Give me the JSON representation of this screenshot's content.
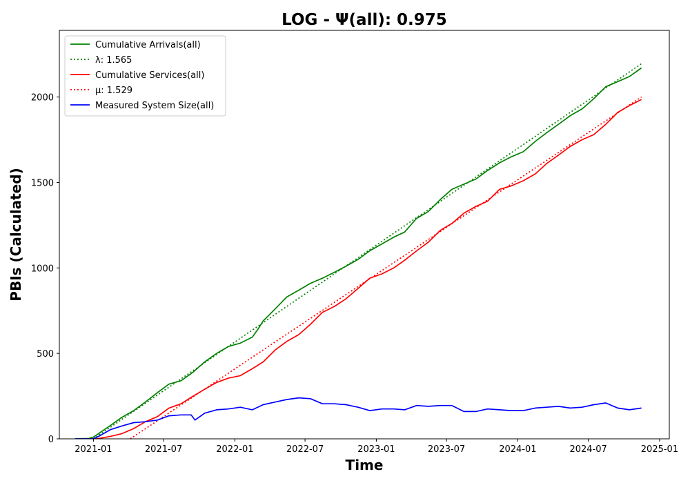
{
  "chart_data": {
    "type": "line",
    "title": "LOG -  Ψ(all): 0.975",
    "xlabel": "Time",
    "ylabel": "PBIs (Calculated)",
    "x_ticks": [
      "2021-01",
      "2021-07",
      "2022-01",
      "2022-07",
      "2023-01",
      "2023-07",
      "2024-01",
      "2024-07",
      "2025-01"
    ],
    "y_ticks": [
      0,
      500,
      1000,
      1500,
      2000
    ],
    "xlim": [
      "2020-10-05",
      "2025-01-26"
    ],
    "ylim": [
      0,
      2390
    ],
    "grid": false,
    "legend_position": "top-left",
    "series": [
      {
        "name": "Cumulative Arrivals(all)",
        "color": "#008000",
        "style": "solid",
        "points": [
          [
            "2020-11-15",
            0
          ],
          [
            "2020-12-20",
            2
          ],
          [
            "2021-01-01",
            10
          ],
          [
            "2021-02-15",
            80
          ],
          [
            "2021-03-15",
            125
          ],
          [
            "2021-04-15",
            165
          ],
          [
            "2021-05-15",
            215
          ],
          [
            "2021-06-15",
            270
          ],
          [
            "2021-07-15",
            320
          ],
          [
            "2021-08-15",
            340
          ],
          [
            "2021-09-15",
            390
          ],
          [
            "2021-10-15",
            450
          ],
          [
            "2021-11-15",
            500
          ],
          [
            "2021-12-15",
            540
          ],
          [
            "2022-01-15",
            560
          ],
          [
            "2022-02-15",
            595
          ],
          [
            "2022-03-01",
            640
          ],
          [
            "2022-03-15",
            690
          ],
          [
            "2022-04-15",
            760
          ],
          [
            "2022-05-15",
            830
          ],
          [
            "2022-06-15",
            870
          ],
          [
            "2022-07-15",
            910
          ],
          [
            "2022-08-15",
            940
          ],
          [
            "2022-09-15",
            975
          ],
          [
            "2022-10-15",
            1010
          ],
          [
            "2022-11-15",
            1050
          ],
          [
            "2022-12-15",
            1100
          ],
          [
            "2023-01-15",
            1140
          ],
          [
            "2023-02-15",
            1180
          ],
          [
            "2023-03-15",
            1210
          ],
          [
            "2023-04-15",
            1290
          ],
          [
            "2023-05-15",
            1330
          ],
          [
            "2023-06-15",
            1400
          ],
          [
            "2023-07-15",
            1460
          ],
          [
            "2023-08-15",
            1490
          ],
          [
            "2023-09-15",
            1520
          ],
          [
            "2023-10-15",
            1570
          ],
          [
            "2023-11-15",
            1615
          ],
          [
            "2023-12-15",
            1650
          ],
          [
            "2024-01-15",
            1680
          ],
          [
            "2024-02-15",
            1740
          ],
          [
            "2024-03-15",
            1790
          ],
          [
            "2024-04-15",
            1840
          ],
          [
            "2024-05-15",
            1890
          ],
          [
            "2024-06-15",
            1930
          ],
          [
            "2024-07-15",
            1990
          ],
          [
            "2024-08-15",
            2060
          ],
          [
            "2024-09-15",
            2090
          ],
          [
            "2024-10-15",
            2120
          ],
          [
            "2024-11-15",
            2170
          ]
        ]
      },
      {
        "name": "λ: 1.565",
        "color": "#008000",
        "style": "dotted",
        "points": [
          [
            "2021-01-01",
            0
          ],
          [
            "2024-11-15",
            2195
          ]
        ]
      },
      {
        "name": "Cumulative Services(all)",
        "color": "#ff0000",
        "style": "solid",
        "points": [
          [
            "2020-12-25",
            0
          ],
          [
            "2021-01-15",
            2
          ],
          [
            "2021-02-15",
            15
          ],
          [
            "2021-03-15",
            30
          ],
          [
            "2021-04-15",
            60
          ],
          [
            "2021-05-15",
            100
          ],
          [
            "2021-06-15",
            130
          ],
          [
            "2021-07-15",
            180
          ],
          [
            "2021-08-15",
            205
          ],
          [
            "2021-09-15",
            250
          ],
          [
            "2021-10-15",
            290
          ],
          [
            "2021-11-15",
            330
          ],
          [
            "2021-12-15",
            355
          ],
          [
            "2022-01-15",
            370
          ],
          [
            "2022-02-15",
            410
          ],
          [
            "2022-03-15",
            450
          ],
          [
            "2022-04-15",
            520
          ],
          [
            "2022-05-15",
            570
          ],
          [
            "2022-06-15",
            610
          ],
          [
            "2022-07-15",
            670
          ],
          [
            "2022-08-15",
            740
          ],
          [
            "2022-09-15",
            775
          ],
          [
            "2022-10-15",
            820
          ],
          [
            "2022-11-15",
            880
          ],
          [
            "2022-12-15",
            940
          ],
          [
            "2023-01-15",
            965
          ],
          [
            "2023-02-15",
            1000
          ],
          [
            "2023-03-15",
            1045
          ],
          [
            "2023-04-15",
            1100
          ],
          [
            "2023-05-15",
            1150
          ],
          [
            "2023-06-15",
            1220
          ],
          [
            "2023-07-15",
            1260
          ],
          [
            "2023-08-15",
            1320
          ],
          [
            "2023-09-15",
            1360
          ],
          [
            "2023-10-15",
            1390
          ],
          [
            "2023-11-15",
            1460
          ],
          [
            "2023-12-15",
            1480
          ],
          [
            "2024-01-15",
            1510
          ],
          [
            "2024-02-15",
            1550
          ],
          [
            "2024-03-15",
            1610
          ],
          [
            "2024-04-15",
            1660
          ],
          [
            "2024-05-15",
            1710
          ],
          [
            "2024-06-15",
            1750
          ],
          [
            "2024-07-15",
            1780
          ],
          [
            "2024-08-15",
            1840
          ],
          [
            "2024-09-15",
            1910
          ],
          [
            "2024-10-15",
            1950
          ],
          [
            "2024-11-15",
            1985
          ]
        ]
      },
      {
        "name": "μ: 1.529",
        "color": "#ff0000",
        "style": "dotted",
        "points": [
          [
            "2021-04-06",
            0
          ],
          [
            "2024-11-15",
            2000
          ]
        ]
      },
      {
        "name": "Measured System Size(all)",
        "color": "#0000ff",
        "style": "solid",
        "points": [
          [
            "2020-11-15",
            0
          ],
          [
            "2020-12-31",
            0
          ],
          [
            "2021-01-15",
            15
          ],
          [
            "2021-02-15",
            55
          ],
          [
            "2021-03-15",
            75
          ],
          [
            "2021-04-15",
            95
          ],
          [
            "2021-05-15",
            100
          ],
          [
            "2021-06-15",
            110
          ],
          [
            "2021-07-15",
            135
          ],
          [
            "2021-08-15",
            140
          ],
          [
            "2021-09-10",
            140
          ],
          [
            "2021-09-20",
            110
          ],
          [
            "2021-10-15",
            150
          ],
          [
            "2021-11-15",
            170
          ],
          [
            "2021-12-15",
            175
          ],
          [
            "2022-01-15",
            185
          ],
          [
            "2022-02-15",
            170
          ],
          [
            "2022-03-15",
            200
          ],
          [
            "2022-04-15",
            215
          ],
          [
            "2022-05-15",
            230
          ],
          [
            "2022-06-15",
            240
          ],
          [
            "2022-07-15",
            235
          ],
          [
            "2022-08-15",
            205
          ],
          [
            "2022-09-15",
            205
          ],
          [
            "2022-10-15",
            200
          ],
          [
            "2022-11-15",
            185
          ],
          [
            "2022-12-15",
            165
          ],
          [
            "2023-01-15",
            175
          ],
          [
            "2023-02-15",
            175
          ],
          [
            "2023-03-15",
            170
          ],
          [
            "2023-04-15",
            195
          ],
          [
            "2023-05-15",
            190
          ],
          [
            "2023-06-15",
            195
          ],
          [
            "2023-07-15",
            195
          ],
          [
            "2023-08-15",
            160
          ],
          [
            "2023-09-15",
            160
          ],
          [
            "2023-10-15",
            175
          ],
          [
            "2023-11-15",
            170
          ],
          [
            "2023-12-15",
            165
          ],
          [
            "2024-01-15",
            165
          ],
          [
            "2024-02-15",
            180
          ],
          [
            "2024-03-15",
            185
          ],
          [
            "2024-04-15",
            190
          ],
          [
            "2024-05-15",
            180
          ],
          [
            "2024-06-15",
            185
          ],
          [
            "2024-07-15",
            200
          ],
          [
            "2024-08-15",
            210
          ],
          [
            "2024-09-15",
            180
          ],
          [
            "2024-10-15",
            170
          ],
          [
            "2024-11-15",
            180
          ]
        ]
      }
    ]
  }
}
